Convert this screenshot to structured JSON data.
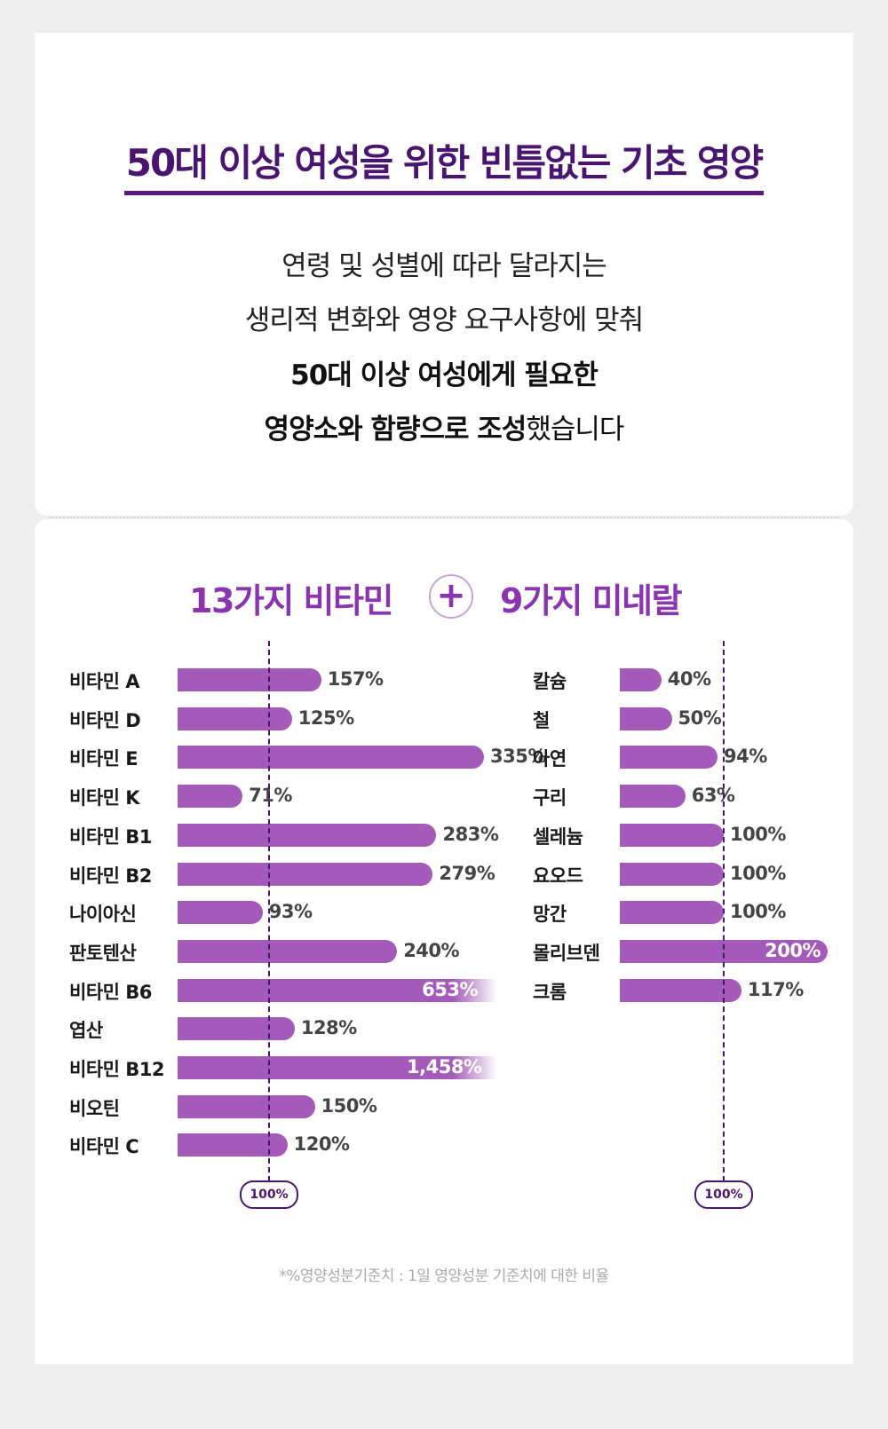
{
  "headline": "50대 이상 여성을 위한 빈틈없는 기초 영양",
  "intro": {
    "line1": "연령 및 성별에 따라 달라지는",
    "line2": "생리적 변화와 영양 요구사항에 맞춰",
    "line3": "50대 이상 여성에게 필요한",
    "line4_bold": "영양소와 함량으로 조성",
    "line4_regular": "했습니다"
  },
  "section": {
    "vitamins_title": "13가지 비타민",
    "plus_symbol": "+",
    "minerals_title": "9가지 미네랄"
  },
  "reference_label": "100%",
  "footnote": "*%영양성분기준치 : 1일 영양성분 기준치에 대한 비율",
  "colors": {
    "headline": "#4a1570",
    "accent": "#8a34b0",
    "bar": "#a35ab8",
    "reference": "#4a1570"
  },
  "chart_data": [
    {
      "type": "bar",
      "orientation": "horizontal",
      "title": "13가지 비타민",
      "unit": "%",
      "reference_value": 100,
      "reference_label": "100%",
      "categories": [
        "비타민 A",
        "비타민 D",
        "비타민 E",
        "비타민 K",
        "비타민 B1",
        "비타민 B2",
        "나이아신",
        "판토텐산",
        "비타민 B6",
        "엽산",
        "비타민 B12",
        "비오틴",
        "비타민 C"
      ],
      "values": [
        157,
        125,
        335,
        71,
        283,
        279,
        93,
        240,
        653,
        128,
        1458,
        150,
        120
      ],
      "value_labels": [
        "157%",
        "125%",
        "335%",
        "71%",
        "283%",
        "279%",
        "93%",
        "240%",
        "653%",
        "128%",
        "1,458%",
        "150%",
        "120%"
      ],
      "truncated": [
        false,
        false,
        false,
        false,
        false,
        false,
        false,
        false,
        true,
        false,
        true,
        false,
        false
      ]
    },
    {
      "type": "bar",
      "orientation": "horizontal",
      "title": "9가지 미네랄",
      "unit": "%",
      "reference_value": 100,
      "reference_label": "100%",
      "categories": [
        "칼슘",
        "철",
        "아연",
        "구리",
        "셀레늄",
        "요오드",
        "망간",
        "몰리브덴",
        "크롬"
      ],
      "values": [
        40,
        50,
        94,
        63,
        100,
        100,
        100,
        200,
        117
      ],
      "value_labels": [
        "40%",
        "50%",
        "94%",
        "63%",
        "100%",
        "100%",
        "100%",
        "200%",
        "117%"
      ],
      "value_label_inside": [
        false,
        false,
        false,
        false,
        false,
        false,
        false,
        true,
        false
      ]
    }
  ]
}
